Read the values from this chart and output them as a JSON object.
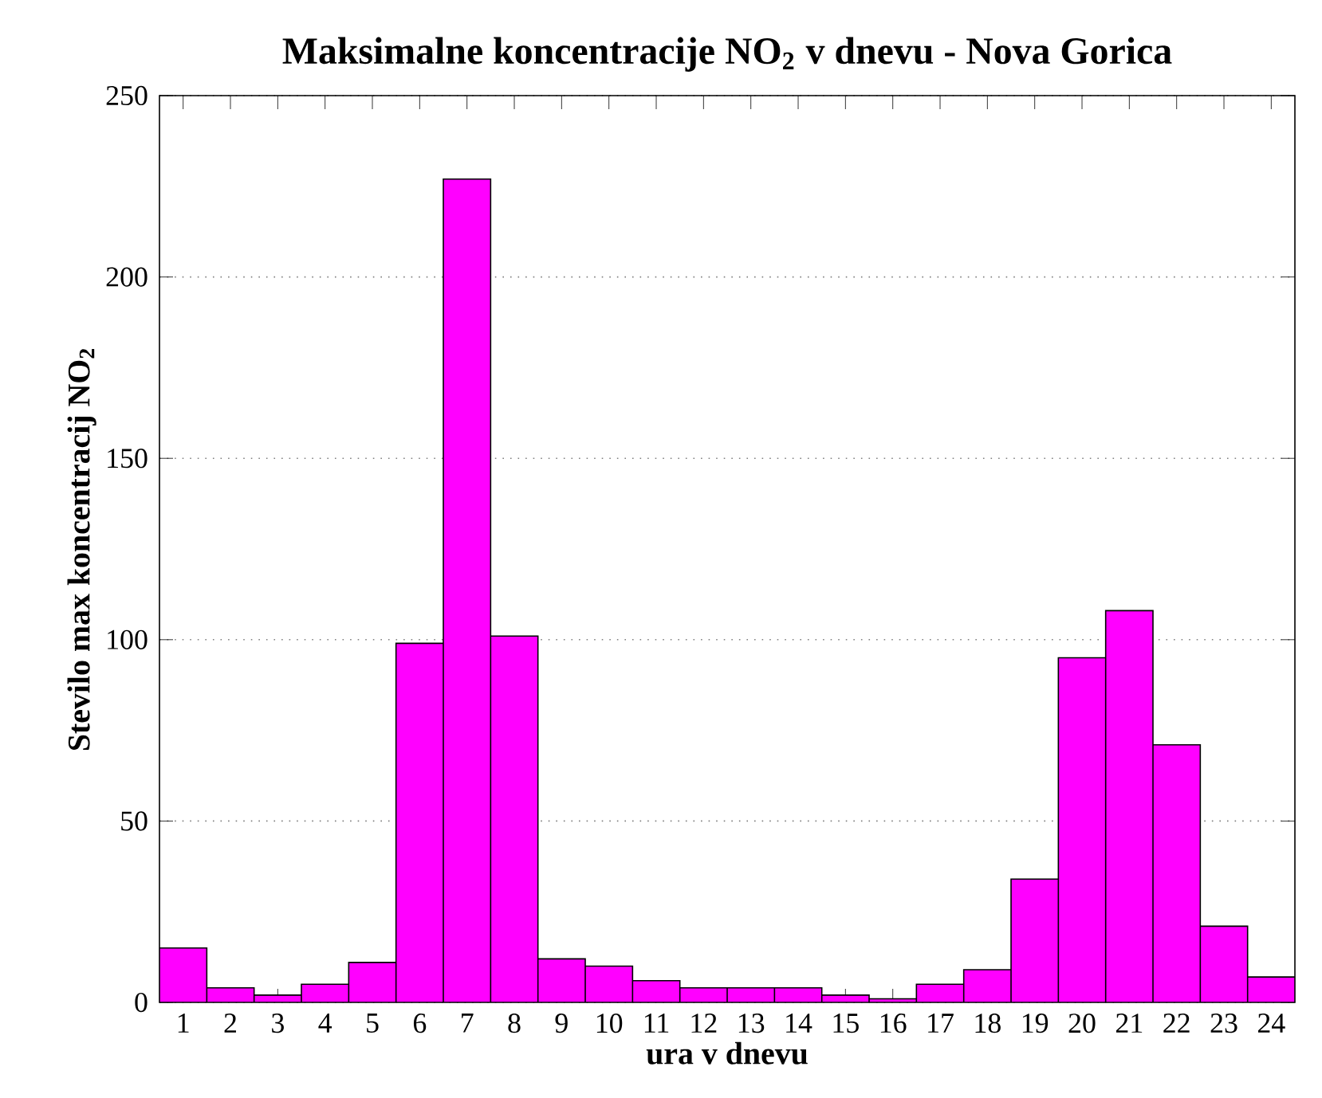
{
  "chart_data": {
    "type": "bar",
    "title": "Maksimalne koncentracije NO$_{2}$ v dnevu - Nova Gorica",
    "xlabel": "ura v dnevu",
    "ylabel": "Stevilo max koncentracij NO$_{2}$",
    "categories": [
      "1",
      "2",
      "3",
      "4",
      "5",
      "6",
      "7",
      "8",
      "9",
      "10",
      "11",
      "12",
      "13",
      "14",
      "15",
      "16",
      "17",
      "18",
      "19",
      "20",
      "21",
      "22",
      "23",
      "24"
    ],
    "values": [
      15,
      4,
      2,
      5,
      11,
      99,
      227,
      101,
      12,
      10,
      6,
      4,
      4,
      4,
      2,
      1,
      5,
      9,
      34,
      95,
      108,
      71,
      21,
      7
    ],
    "color": "#ff00ff",
    "ylim": [
      0,
      250
    ],
    "yticks": [
      0,
      50,
      100,
      150,
      200,
      250
    ],
    "grid": "y"
  }
}
